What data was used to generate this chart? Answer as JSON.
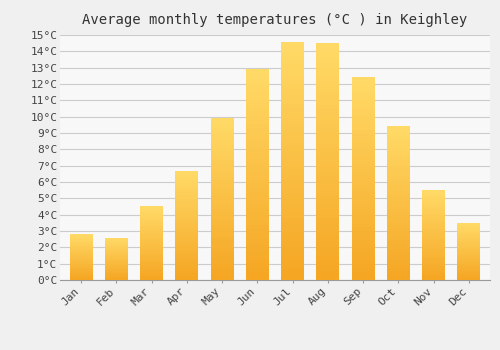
{
  "title": "Average monthly temperatures (°C ) in Keighley",
  "months": [
    "Jan",
    "Feb",
    "Mar",
    "Apr",
    "May",
    "Jun",
    "Jul",
    "Aug",
    "Sep",
    "Oct",
    "Nov",
    "Dec"
  ],
  "values": [
    2.8,
    2.6,
    4.5,
    6.7,
    9.9,
    12.9,
    14.6,
    14.5,
    12.4,
    9.4,
    5.5,
    3.5
  ],
  "bar_color_bottom": "#F5A623",
  "bar_color_top": "#FFD966",
  "ylim": [
    0,
    15
  ],
  "background_color": "#f0f0f0",
  "plot_bg_color": "#f8f8f8",
  "grid_color": "#cccccc",
  "title_fontsize": 10,
  "tick_fontsize": 8,
  "bar_width": 0.65
}
